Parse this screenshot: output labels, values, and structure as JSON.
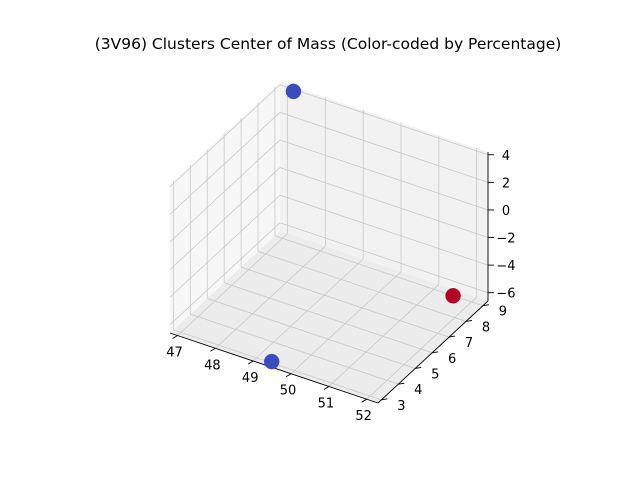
{
  "chart_data": {
    "type": "scatter",
    "projection": "3d",
    "title": "(3V96) Clusters Center of Mass (Color-coded by Percentage)",
    "xlabel": "",
    "ylabel": "",
    "zlabel": "",
    "xlim": [
      46.8,
      52.3
    ],
    "ylim": [
      2.8,
      9.3
    ],
    "zlim": [
      -6.6,
      4.2
    ],
    "x_ticks": [
      "47",
      "48",
      "49",
      "50",
      "51",
      "52"
    ],
    "y_ticks": [
      "3",
      "4",
      "5",
      "6",
      "7",
      "8",
      "9"
    ],
    "z_ticks": [
      "4",
      "2",
      "0",
      "−2",
      "−4",
      "−6"
    ],
    "x_tick_values": [
      47,
      48,
      49,
      50,
      51,
      52
    ],
    "y_tick_values": [
      3,
      4,
      5,
      6,
      7,
      8,
      9
    ],
    "z_tick_values": [
      4,
      2,
      0,
      -2,
      -4,
      -6
    ],
    "grid": true,
    "points": [
      {
        "x": 47.2,
        "y": 9.2,
        "z": 4.0,
        "color": "#3b4cc0"
      },
      {
        "x": 49.4,
        "y": 3.0,
        "z": -6.5,
        "color": "#3b4cc0"
      },
      {
        "x": 51.6,
        "y": 8.8,
        "z": -6.3,
        "color": "#b40426"
      }
    ],
    "pane_color": "#f2f2f2",
    "grid_color": "#c8c8c8"
  }
}
